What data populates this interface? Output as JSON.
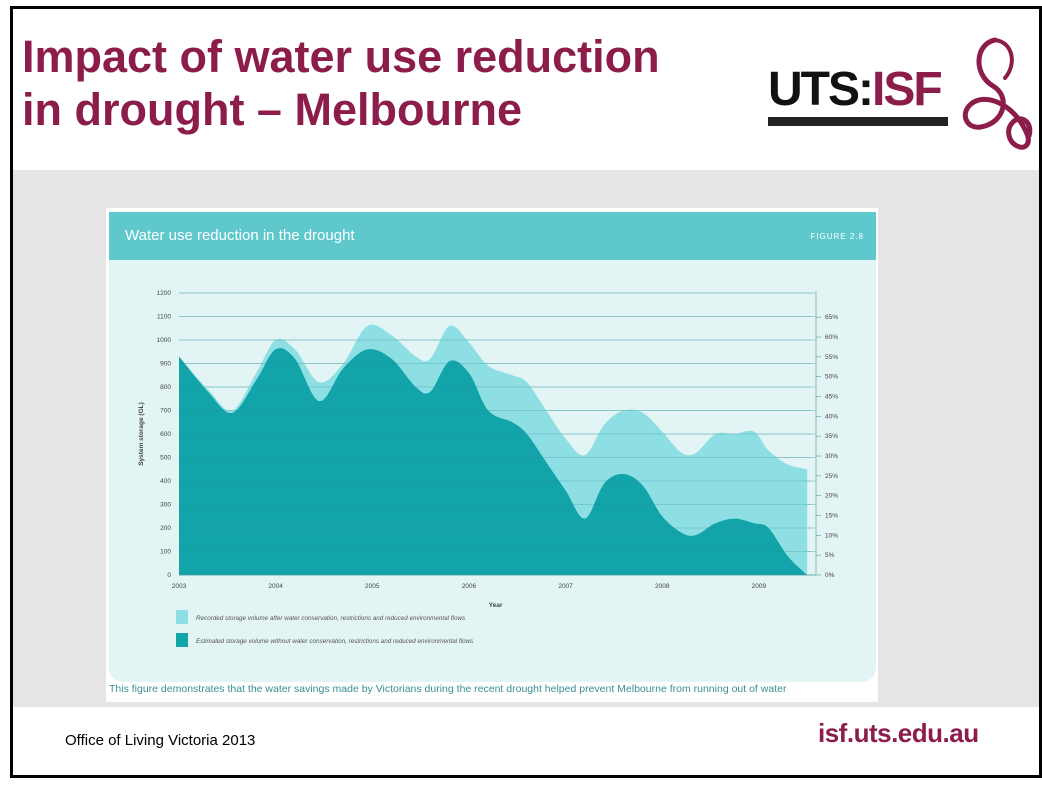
{
  "slide": {
    "title_line1": "Impact of water use reduction",
    "title_line2": "in drought – Melbourne",
    "logo_uts": "UTS:",
    "logo_isf": "ISF",
    "source_text": "Office of Living Victoria 2013",
    "website": "isf.uts.edu.au",
    "brand_color": "#8c1d4a"
  },
  "figure": {
    "header_title": "Water use reduction in the drought",
    "figure_label": "FIGURE 2.8",
    "caption": "This figure demonstrates that the water savings made by Victorians during the recent drought helped prevent Melbourne from running out of water"
  },
  "chart_data": {
    "type": "area",
    "xlabel": "Year",
    "ylabel": "System storage (GL)",
    "xlim": [
      2003,
      2009.55
    ],
    "ylim": [
      0,
      1200
    ],
    "y_ticks": [
      0,
      100,
      200,
      300,
      400,
      500,
      600,
      700,
      800,
      900,
      1000,
      1100,
      1200
    ],
    "x_ticks": [
      "2003",
      "2004",
      "2005",
      "2006",
      "2007",
      "2008",
      "2009"
    ],
    "y2_ticks": [
      "0%",
      "5%",
      "10%",
      "15%",
      "20%",
      "25%",
      "30%",
      "35%",
      "40%",
      "45%",
      "50%",
      "55%",
      "60%",
      "65%"
    ],
    "grid": true,
    "legend_position": "bottom",
    "series": [
      {
        "name": "Recorded storage volume after water conservation, restrictions and reduced environmental flows",
        "color": "#8ddfe3",
        "x": [
          2003,
          2003.3,
          2003.55,
          2003.8,
          2004.0,
          2004.2,
          2004.45,
          2004.7,
          2004.95,
          2005.2,
          2005.45,
          2005.6,
          2005.8,
          2006.0,
          2006.2,
          2006.45,
          2006.6,
          2006.8,
          2007.0,
          2007.2,
          2007.4,
          2007.6,
          2007.8,
          2008.0,
          2008.2,
          2008.35,
          2008.55,
          2008.75,
          2008.95,
          2009.1,
          2009.3,
          2009.5
        ],
        "values": [
          930,
          790,
          700,
          860,
          1000,
          960,
          820,
          900,
          1060,
          1020,
          930,
          920,
          1060,
          990,
          890,
          850,
          820,
          700,
          580,
          510,
          640,
          700,
          690,
          610,
          520,
          520,
          600,
          600,
          610,
          530,
          470,
          450
        ]
      },
      {
        "name": "Estimated storage volume without water conservation, restrictions and reduced environmental flows",
        "color": "#13a4aa",
        "x": [
          2003,
          2003.3,
          2003.55,
          2003.8,
          2004.0,
          2004.2,
          2004.45,
          2004.7,
          2004.95,
          2005.2,
          2005.45,
          2005.6,
          2005.8,
          2006.0,
          2006.2,
          2006.45,
          2006.6,
          2006.8,
          2007.0,
          2007.2,
          2007.4,
          2007.6,
          2007.8,
          2008.0,
          2008.2,
          2008.35,
          2008.55,
          2008.75,
          2008.95,
          2009.1,
          2009.3,
          2009.5
        ],
        "values": [
          930,
          780,
          690,
          830,
          960,
          920,
          740,
          880,
          960,
          920,
          800,
          780,
          910,
          860,
          700,
          650,
          600,
          480,
          360,
          240,
          390,
          430,
          380,
          250,
          180,
          170,
          220,
          240,
          220,
          200,
          80,
          0
        ]
      }
    ]
  }
}
